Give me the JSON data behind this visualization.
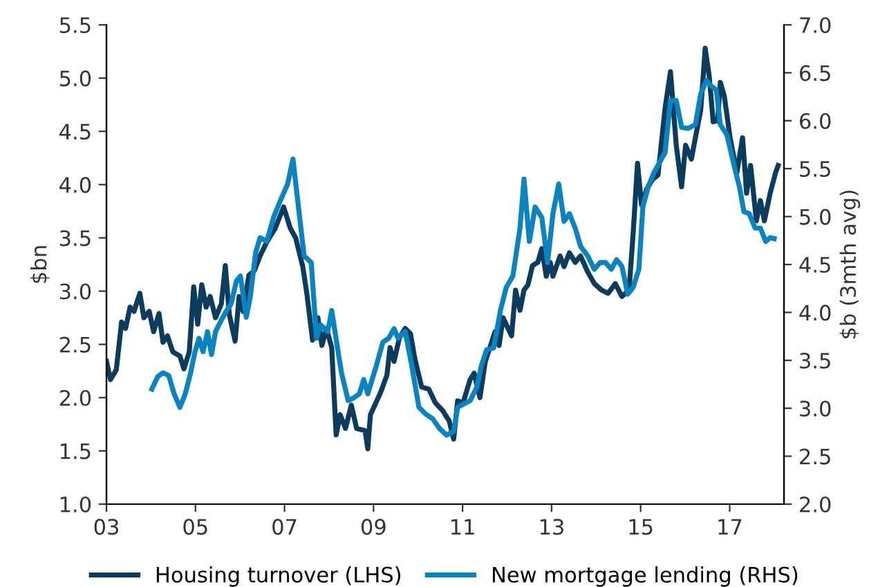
{
  "chart_data": {
    "type": "line",
    "ylabel": "$bn",
    "y2label": "$b (3mth avg)",
    "xlim": [
      2003,
      2018.22
    ],
    "xticks": [
      {
        "value": 2003,
        "label": "03"
      },
      {
        "value": 2005,
        "label": "05"
      },
      {
        "value": 2007,
        "label": "07"
      },
      {
        "value": 2009,
        "label": "09"
      },
      {
        "value": 2011,
        "label": "11"
      },
      {
        "value": 2013,
        "label": "13"
      },
      {
        "value": 2015,
        "label": "15"
      },
      {
        "value": 2017,
        "label": "17"
      }
    ],
    "ylim": [
      1.0,
      5.5
    ],
    "yticks": [
      {
        "value": 1,
        "label": "1.0"
      },
      1.5,
      {
        "value": 2,
        "label": "2.0"
      },
      2.5,
      {
        "value": 3,
        "label": "3.0"
      },
      3.5,
      {
        "value": 4,
        "label": "4.0"
      },
      4.5,
      {
        "value": 5,
        "label": "5.0"
      },
      5.5
    ],
    "y2lim": [
      2.0,
      7.0
    ],
    "y2ticks": [
      {
        "value": 2,
        "label": "2.0"
      },
      2.5,
      {
        "value": 3,
        "label": "3.0"
      },
      3.5,
      {
        "value": 4,
        "label": "4.0"
      },
      4.5,
      {
        "value": 5,
        "label": "5.0"
      },
      5.5,
      {
        "value": 6,
        "label": "6.0"
      },
      6.5,
      {
        "value": 7,
        "label": "7.0"
      }
    ],
    "grid": false,
    "legend": "bottom",
    "marker": "none",
    "line_style": "solid",
    "series": [
      {
        "name": "Housing turnover (LHS)",
        "color": "#0b3c5d",
        "axis": "y",
        "x": [
          2003.0,
          2003.09,
          2003.22,
          2003.34,
          2003.43,
          2003.53,
          2003.62,
          2003.75,
          2003.84,
          2003.96,
          2004.06,
          2004.18,
          2004.27,
          2004.37,
          2004.49,
          2004.65,
          2004.74,
          2004.86,
          2004.96,
          2005.05,
          2005.14,
          2005.24,
          2005.33,
          2005.45,
          2005.58,
          2005.67,
          2005.76,
          2005.89,
          2005.98,
          2006.07,
          2006.2,
          2006.32,
          2006.45,
          2006.6,
          2006.79,
          2006.98,
          2007.13,
          2007.25,
          2007.41,
          2007.5,
          2007.63,
          2007.75,
          2007.84,
          2007.94,
          2008.06,
          2008.16,
          2008.25,
          2008.37,
          2008.5,
          2008.62,
          2008.81,
          2008.87,
          2008.93,
          2009.15,
          2009.3,
          2009.37,
          2009.46,
          2009.58,
          2009.71,
          2009.83,
          2009.93,
          2010.08,
          2010.24,
          2010.39,
          2010.55,
          2010.7,
          2010.8,
          2010.89,
          2011.01,
          2011.17,
          2011.26,
          2011.39,
          2011.51,
          2011.63,
          2011.73,
          2011.82,
          2011.91,
          2012.01,
          2012.1,
          2012.19,
          2012.29,
          2012.38,
          2012.47,
          2012.57,
          2012.69,
          2012.78,
          2012.88,
          2012.97,
          2013.03,
          2013.19,
          2013.28,
          2013.4,
          2013.53,
          2013.65,
          2013.81,
          2013.96,
          2014.12,
          2014.27,
          2014.43,
          2014.58,
          2014.74,
          2014.83,
          2014.93,
          2015.02,
          2015.14,
          2015.27,
          2015.39,
          2015.55,
          2015.67,
          2015.8,
          2015.92,
          2016.01,
          2016.14,
          2016.23,
          2016.35,
          2016.45,
          2016.54,
          2016.63,
          2016.73,
          2016.79,
          2016.88,
          2017.01,
          2017.16,
          2017.29,
          2017.38,
          2017.47,
          2017.6,
          2017.69,
          2017.78,
          2017.91,
          2018.03,
          2018.09
        ],
        "values": [
          2.34,
          2.17,
          2.26,
          2.71,
          2.65,
          2.85,
          2.81,
          2.98,
          2.75,
          2.81,
          2.62,
          2.79,
          2.52,
          2.58,
          2.43,
          2.39,
          2.27,
          2.43,
          3.04,
          2.69,
          3.06,
          2.85,
          2.95,
          2.75,
          2.88,
          3.24,
          2.78,
          2.53,
          2.95,
          2.81,
          3.15,
          3.19,
          3.33,
          3.46,
          3.59,
          3.79,
          3.59,
          3.5,
          3.23,
          2.98,
          2.54,
          2.75,
          2.49,
          2.65,
          2.47,
          1.65,
          1.84,
          1.71,
          1.93,
          1.71,
          1.69,
          1.52,
          1.84,
          2.04,
          2.21,
          2.47,
          2.34,
          2.56,
          2.65,
          2.6,
          2.36,
          2.1,
          2.08,
          1.95,
          1.88,
          1.78,
          1.61,
          1.97,
          1.95,
          2.17,
          2.23,
          2.0,
          2.34,
          2.49,
          2.62,
          2.49,
          2.75,
          2.66,
          2.58,
          3.01,
          2.82,
          3.01,
          3.06,
          3.24,
          3.27,
          3.4,
          3.14,
          3.27,
          3.14,
          3.33,
          3.23,
          3.36,
          3.27,
          3.33,
          3.18,
          3.07,
          3.01,
          2.98,
          3.07,
          2.95,
          3.01,
          3.53,
          4.2,
          3.81,
          3.96,
          4.05,
          4.09,
          4.72,
          5.06,
          4.37,
          3.98,
          4.37,
          4.24,
          4.44,
          4.7,
          5.28,
          5.02,
          4.59,
          4.6,
          4.96,
          4.83,
          4.44,
          4.11,
          4.44,
          3.92,
          4.18,
          3.66,
          3.85,
          3.66,
          3.92,
          4.11,
          4.18
        ]
      },
      {
        "name": "New mortgage lending (RHS)",
        "color": "#0a84c0",
        "axis": "y2",
        "x": [
          2004.02,
          2004.15,
          2004.27,
          2004.4,
          2004.52,
          2004.65,
          2004.77,
          2004.89,
          2004.99,
          2005.08,
          2005.17,
          2005.27,
          2005.36,
          2005.45,
          2005.58,
          2005.7,
          2005.8,
          2005.92,
          2006.01,
          2006.14,
          2006.23,
          2006.35,
          2006.45,
          2006.6,
          2006.76,
          2006.91,
          2007.07,
          2007.19,
          2007.35,
          2007.44,
          2007.6,
          2007.72,
          2007.81,
          2007.97,
          2008.06,
          2008.19,
          2008.28,
          2008.43,
          2008.56,
          2008.68,
          2008.78,
          2008.87,
          2009.06,
          2009.21,
          2009.34,
          2009.46,
          2009.55,
          2009.71,
          2009.86,
          2010.02,
          2010.17,
          2010.33,
          2010.48,
          2010.64,
          2010.8,
          2010.89,
          2011.01,
          2011.17,
          2011.32,
          2011.42,
          2011.54,
          2011.7,
          2011.85,
          2011.98,
          2012.13,
          2012.29,
          2012.38,
          2012.5,
          2012.63,
          2012.78,
          2012.91,
          2013.03,
          2013.16,
          2013.28,
          2013.4,
          2013.53,
          2013.65,
          2013.81,
          2013.96,
          2014.09,
          2014.21,
          2014.34,
          2014.46,
          2014.58,
          2014.71,
          2014.83,
          2014.96,
          2015.05,
          2015.17,
          2015.3,
          2015.42,
          2015.55,
          2015.67,
          2015.8,
          2015.92,
          2016.07,
          2016.23,
          2016.35,
          2016.48,
          2016.57,
          2016.7,
          2016.79,
          2016.94,
          2017.1,
          2017.22,
          2017.32,
          2017.44,
          2017.57,
          2017.69,
          2017.81,
          2017.91,
          2018.0
        ],
        "values": [
          3.2,
          3.33,
          3.37,
          3.34,
          3.15,
          3.01,
          3.15,
          3.37,
          3.59,
          3.73,
          3.59,
          3.8,
          3.56,
          3.8,
          3.92,
          4.02,
          4.09,
          4.33,
          4.38,
          3.95,
          4.16,
          4.62,
          4.78,
          4.74,
          5.0,
          5.17,
          5.34,
          5.6,
          4.95,
          4.59,
          4.52,
          3.73,
          3.87,
          3.8,
          4.02,
          3.63,
          3.37,
          3.08,
          3.11,
          3.15,
          3.3,
          3.15,
          3.44,
          3.69,
          3.73,
          3.83,
          3.73,
          3.8,
          3.44,
          3.01,
          2.94,
          2.89,
          2.79,
          2.72,
          2.76,
          3.01,
          3.04,
          3.08,
          3.22,
          3.44,
          3.61,
          3.63,
          4.02,
          4.26,
          4.38,
          4.88,
          5.39,
          4.74,
          5.1,
          4.99,
          4.52,
          5.03,
          5.34,
          4.95,
          5.03,
          4.88,
          4.69,
          4.59,
          4.45,
          4.52,
          4.52,
          4.45,
          4.55,
          4.48,
          4.19,
          4.26,
          4.45,
          5.1,
          5.31,
          5.46,
          5.56,
          5.67,
          6.21,
          6.21,
          5.93,
          5.92,
          5.96,
          6.28,
          6.42,
          6.37,
          6.32,
          5.96,
          5.85,
          5.53,
          5.31,
          5.05,
          5.03,
          4.88,
          4.88,
          4.74,
          4.78,
          4.77
        ]
      }
    ]
  }
}
